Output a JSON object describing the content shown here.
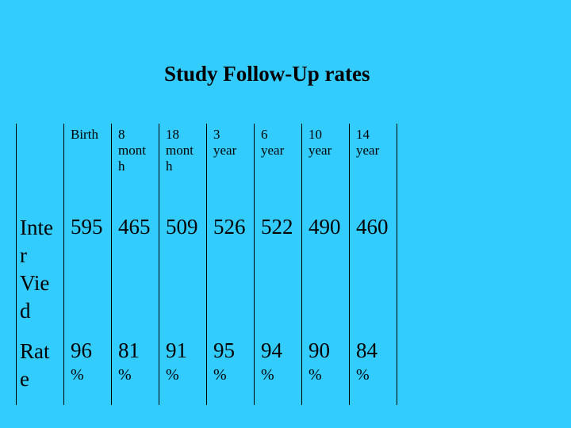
{
  "title": "Study Follow-Up rates",
  "columns": [
    "Birth",
    "8\nmont\nh",
    "18\nmont\nh",
    "3\nyear",
    "6\nyear",
    "10\nyear",
    "14\nyear"
  ],
  "rows": [
    {
      "label": "Inte\nr\nVie\nd",
      "values": [
        "595",
        "465",
        "509",
        "526",
        "522",
        "490",
        "460"
      ]
    },
    {
      "label": "Rat\ne",
      "values": [
        "96",
        "81",
        "91",
        "95",
        "94",
        "90",
        "84"
      ],
      "suffix": "%"
    }
  ]
}
